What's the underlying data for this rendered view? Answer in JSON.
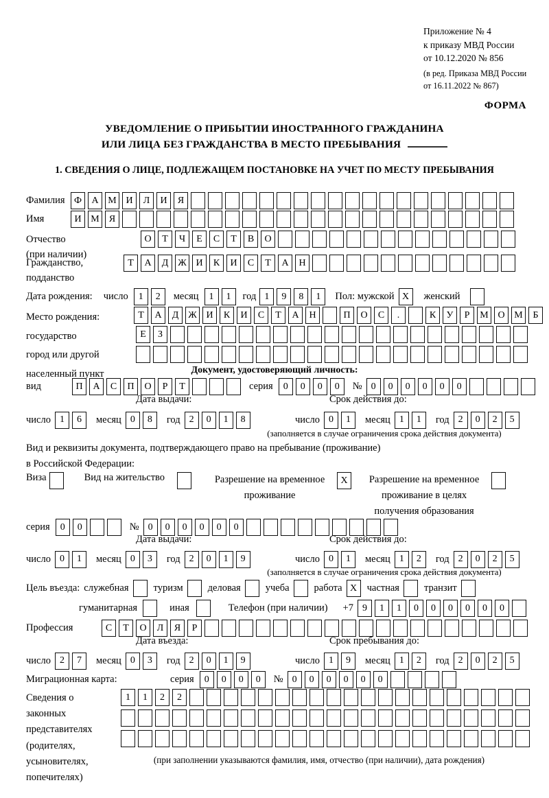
{
  "labels": {
    "day": "число",
    "month": "месяц",
    "year": "год",
    "series": "серия",
    "number": "№",
    "issue_date": "Дата выдачи:",
    "validity": "Срок действия до:",
    "limit_note": "(заполняется в случае ограничения срока действия документа)"
  },
  "header": {
    "line1": "Приложение № 4",
    "line2": "к приказу МВД России",
    "line3": "от 10.12.2020 № 856",
    "sub1": "(в ред. Приказа МВД России",
    "sub2": "от 16.11.2022 № 867)",
    "form_label": "ФОРМА"
  },
  "title": {
    "line1": "УВЕДОМЛЕНИЕ О ПРИБЫТИИ ИНОСТРАННОГО ГРАЖДАНИНА",
    "line2": "ИЛИ ЛИЦА БЕЗ ГРАЖДАНСТВА В МЕСТО ПРЕБЫВАНИЯ"
  },
  "section1": {
    "heading": "1. СВЕДЕНИЯ О ЛИЦЕ, ПОДЛЕЖАЩЕМ ПОСТАНОВКЕ НА УЧЕТ ПО МЕСТУ ПРЕБЫВАНИЯ"
  },
  "person": {
    "surname_label": "Фамилия",
    "surname": "ФАМИЛИЯ",
    "name_label": "Имя",
    "name": "ИМЯ",
    "patronymic_label": "Отчество",
    "patronymic_label2": "(при наличии)",
    "patronymic": "ОТЧЕСТВО",
    "citizenship_label": "Гражданство,",
    "citizenship_label2": "подданство",
    "citizenship": "ТАДЖИКИСТАН",
    "birth_date_label": "Дата рождения:",
    "birth_day": "12",
    "birth_month": "11",
    "birth_year": "1981",
    "sex_label": "Пол: мужской",
    "sex_male_mark": "X",
    "sex_female_label": "женский",
    "sex_female_mark": "",
    "birth_place_label": "Место рождения:",
    "birth_place_sub1": "государство",
    "birth_place_sub2": "город или другой",
    "birth_place_sub3": "населенный пункт",
    "birth_place_line1": "ТАДЖИКИСТАН ПОС. КУРМОМБ",
    "birth_place_line2": "ЕЗ",
    "birth_place_line3": ""
  },
  "identity_doc": {
    "heading": "Документ, удостоверяющий личность:",
    "kind_label": "вид",
    "kind": "ПАСПОРТ",
    "series": "0000",
    "number": "000000",
    "issue_day": "16",
    "issue_month": "08",
    "issue_year": "2018",
    "expiry_day": "01",
    "expiry_month": "11",
    "expiry_year": "2025"
  },
  "residence_doc": {
    "intro1": "Вид и реквизиты документа, подтверждающего право на пребывание (проживание)",
    "intro2": "в Российской Федерации:",
    "options": [
      {
        "label": "Виза",
        "mark": ""
      },
      {
        "label": "Вид на жительство",
        "mark": ""
      },
      {
        "label": "Разрешение на временное проживание",
        "mark": "X"
      },
      {
        "label": "Разрешение на временное проживание в целях получения образования",
        "mark": ""
      }
    ],
    "series": "00",
    "number": "000000",
    "issue_day": "01",
    "issue_month": "03",
    "issue_year": "2019",
    "expiry_day": "01",
    "expiry_month": "12",
    "expiry_year": "2025"
  },
  "entry": {
    "purpose_label": "Цель въезда:",
    "purposes": [
      {
        "label": "служебная",
        "mark": ""
      },
      {
        "label": "туризм",
        "mark": ""
      },
      {
        "label": "деловая",
        "mark": ""
      },
      {
        "label": "учеба",
        "mark": ""
      },
      {
        "label": "работа",
        "mark": "X"
      },
      {
        "label": "частная",
        "mark": ""
      },
      {
        "label": "транзит",
        "mark": ""
      },
      {
        "label": "гуманитарная",
        "mark": ""
      },
      {
        "label": "иная",
        "mark": ""
      }
    ],
    "phone_label": "Телефон (при наличии)",
    "phone_prefix": "+7",
    "phone": "911000000",
    "profession_label": "Профессия",
    "profession": "СТОЛЯР",
    "entry_date_label": "Дата въезда:",
    "entry_day": "27",
    "entry_month": "03",
    "entry_year": "2019",
    "stay_label": "Срок пребывания до:",
    "stay_day": "19",
    "stay_month": "12",
    "stay_year": "2025"
  },
  "migration_card": {
    "label": "Миграционная карта:",
    "series": "0000",
    "number": "000000"
  },
  "representatives": {
    "label_lines": [
      "Сведения о",
      "законных",
      "представителях",
      "(родителях,",
      "усыновителях,",
      "попечителях)"
    ],
    "line1": "1122",
    "line2": "",
    "line3": "",
    "note": "(при заполнении указываются фамилия, имя, отчество (при наличии), дата рождения)"
  }
}
